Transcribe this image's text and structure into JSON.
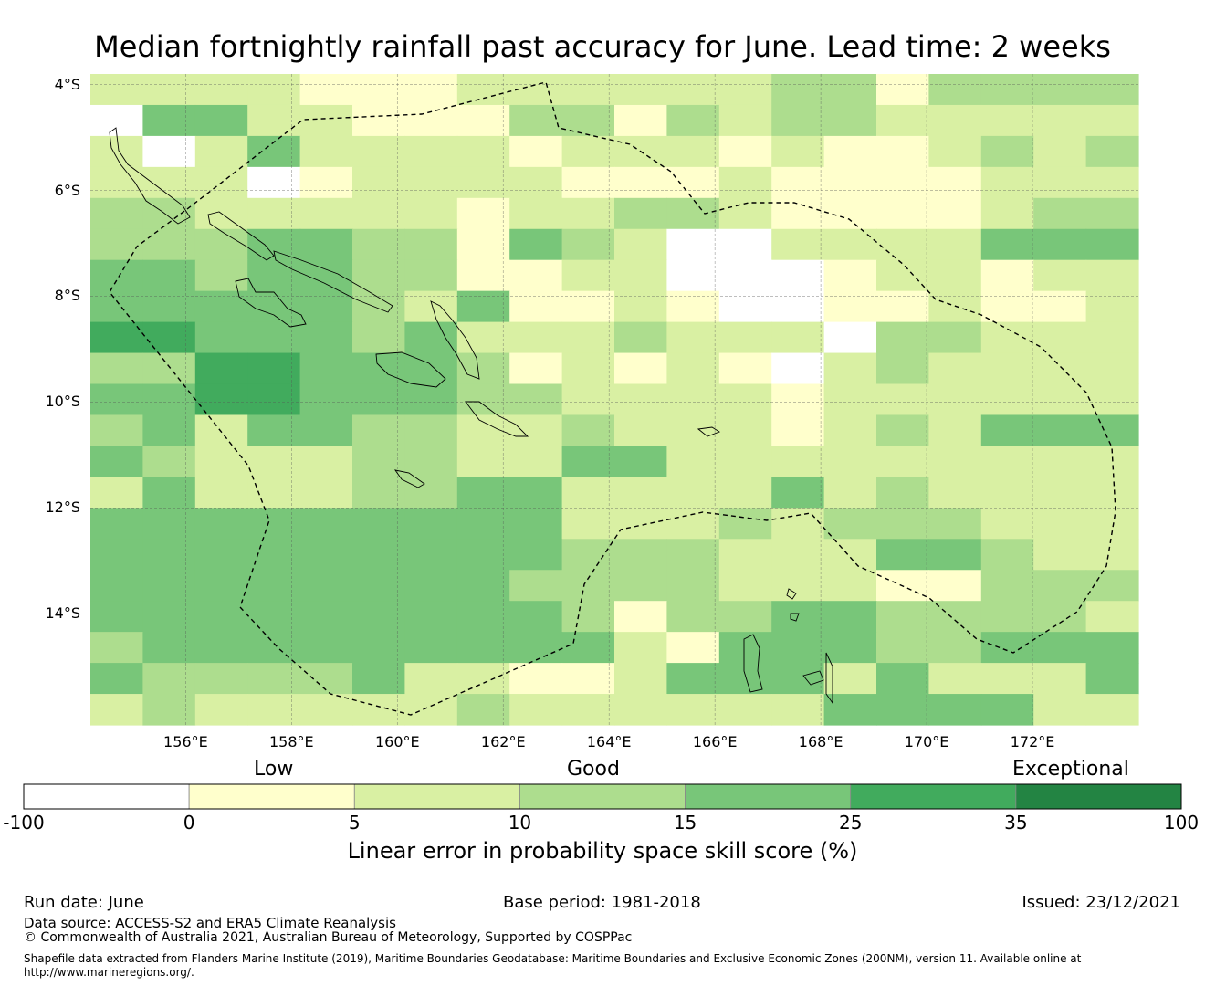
{
  "title": "Median fortnightly rainfall past accuracy for June. Lead time: 2 weeks",
  "map": {
    "lon_range": [
      154.2,
      174.0
    ],
    "lat_range": [
      -16.1,
      -3.8
    ],
    "cell_size_deg": 0.833,
    "lat_ticks": [
      {
        "value": -4,
        "label": "4°S"
      },
      {
        "value": -6,
        "label": "6°S"
      },
      {
        "value": -8,
        "label": "8°S"
      },
      {
        "value": -10,
        "label": "10°S"
      },
      {
        "value": -12,
        "label": "12°S"
      },
      {
        "value": -14,
        "label": "14°S"
      }
    ],
    "lon_ticks": [
      {
        "value": 156,
        "label": "156°E"
      },
      {
        "value": 158,
        "label": "158°E"
      },
      {
        "value": 160,
        "label": "160°E"
      },
      {
        "value": 162,
        "label": "162°E"
      },
      {
        "value": 164,
        "label": "164°E"
      },
      {
        "value": 166,
        "label": "166°E"
      },
      {
        "value": 168,
        "label": "168°E"
      },
      {
        "value": 170,
        "label": "170°E"
      },
      {
        "value": 172,
        "label": "172°E"
      }
    ],
    "grid_class_rows": [
      "22221112222223313333",
      "04422111331323322222",
      "20242222122212112323",
      "22201222211121111222",
      "33222221223321111233",
      "33344331432002222444",
      "44344331122000122122",
      "44444324112100112112",
      "55444342223222033222",
      "33554443121210232222",
      "44554443322221222222",
      "34244332232221232444",
      "43222332244222222222",
      "24222334422224232222",
      "44444444422232333222",
      "44444444433322244322",
      "44444444333322211333",
      "44444444431334433332",
      "34444444442144433444",
      "43333422112444242224",
      "23222223222222444422"
    ],
    "grid_colors": [
      "#ffffff",
      "#ffffcc",
      "#d9f0a3",
      "#addd8e",
      "#78c679",
      "#41ab5d",
      "#238443"
    ],
    "grid_on": true
  },
  "category_labels": {
    "low": "Low",
    "good": "Good",
    "exceptional": "Exceptional"
  },
  "colorbar": {
    "bins": [
      {
        "from": -100,
        "to": 0,
        "color": "#ffffff"
      },
      {
        "from": 0,
        "to": 5,
        "color": "#ffffcc"
      },
      {
        "from": 5,
        "to": 10,
        "color": "#d9f0a3"
      },
      {
        "from": 10,
        "to": 15,
        "color": "#addd8e"
      },
      {
        "from": 15,
        "to": 25,
        "color": "#78c679"
      },
      {
        "from": 25,
        "to": 35,
        "color": "#41ab5d"
      },
      {
        "from": 35,
        "to": 100,
        "color": "#238443"
      }
    ],
    "tick_labels": [
      "-100",
      "0",
      "5",
      "10",
      "15",
      "25",
      "35",
      "100"
    ],
    "title": "Linear error in probability space skill score (%)"
  },
  "footer": {
    "run_date": "Run date: June",
    "base_period": "Base period: 1981-2018",
    "issued": "Issued: 23/12/2021",
    "data_source": "Data source: ACCESS-S2 and ERA5 Climate Reanalysis",
    "copyright": "© Commonwealth of Australia 2021, Australian Bureau of Meteorology, Supported by COSPPac",
    "shapefile_line1": "Shapefile data extracted from Flanders Marine Institute (2019), Maritime Boundaries Geodatabase: Maritime Boundaries and Exclusive Economic Zones (200NM), version 11. Available online at",
    "shapefile_line2": "http://www.marineregions.org/."
  }
}
